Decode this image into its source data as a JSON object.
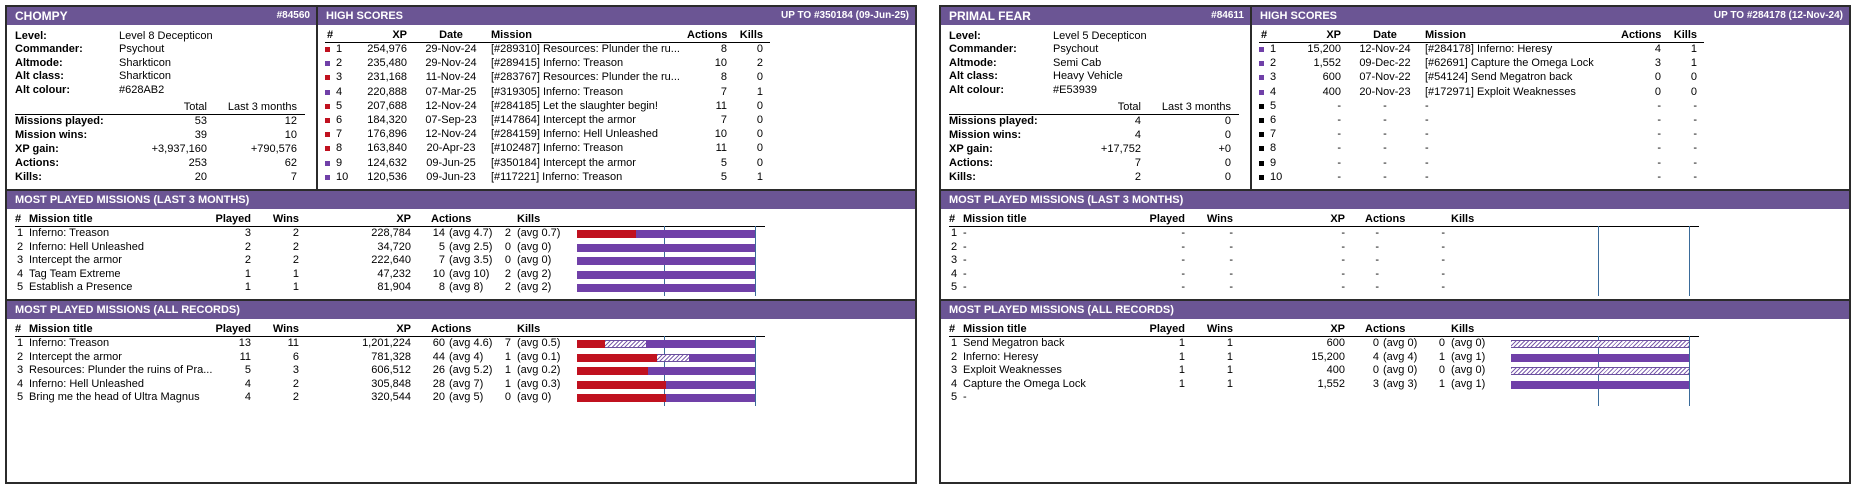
{
  "colors": {
    "header": "#6b5594",
    "red": "#c0111f",
    "purple": "#7040a8",
    "black": "#000000"
  },
  "left": {
    "name": "CHOMPY",
    "id": "#84560",
    "info_labels": [
      "Level:",
      "Commander:",
      "Altmode:",
      "Alt class:",
      "Alt colour:"
    ],
    "info_values": [
      "Level 8 Decepticon",
      "Psychout",
      "Sharkticon",
      "Sharkticon",
      "#628AB2"
    ],
    "stats_head": [
      "Total",
      "Last 3 months"
    ],
    "stats_labels": [
      "Missions played:",
      "Mission wins:",
      "XP gain:",
      "Actions:",
      "Kills:"
    ],
    "stats_total": [
      "53",
      "39",
      "+3,937,160",
      "253",
      "20"
    ],
    "stats_last3": [
      "12",
      "10",
      "+790,576",
      "62",
      "7"
    ],
    "hs_title": "HIGH SCORES",
    "hs_upto": "UP TO #350184 (09-Jun-25)",
    "hs_cols": [
      "#",
      "XP",
      "Date",
      "Mission",
      "Actions",
      "Kills"
    ],
    "hs_rows": [
      {
        "n": "1",
        "xp": "254,976",
        "date": "29-Nov-24",
        "mission": "[#289310] Resources: Plunder the ru...",
        "actions": "8",
        "kills": "0",
        "color": "red"
      },
      {
        "n": "2",
        "xp": "235,480",
        "date": "29-Nov-24",
        "mission": "[#289415] Inferno: Treason",
        "actions": "10",
        "kills": "2",
        "color": "purple"
      },
      {
        "n": "3",
        "xp": "231,168",
        "date": "11-Nov-24",
        "mission": "[#283767] Resources: Plunder the ru...",
        "actions": "8",
        "kills": "0",
        "color": "red"
      },
      {
        "n": "4",
        "xp": "220,888",
        "date": "07-Mar-25",
        "mission": "[#319305] Inferno: Treason",
        "actions": "7",
        "kills": "1",
        "color": "purple"
      },
      {
        "n": "5",
        "xp": "207,688",
        "date": "12-Nov-24",
        "mission": "[#284185] Let the slaughter begin!",
        "actions": "11",
        "kills": "0",
        "color": "red"
      },
      {
        "n": "6",
        "xp": "184,320",
        "date": "07-Sep-23",
        "mission": "[#147864] Intercept the armor",
        "actions": "7",
        "kills": "0",
        "color": "red"
      },
      {
        "n": "7",
        "xp": "176,896",
        "date": "12-Nov-24",
        "mission": "[#284159] Inferno: Hell Unleashed",
        "actions": "10",
        "kills": "0",
        "color": "red"
      },
      {
        "n": "8",
        "xp": "163,840",
        "date": "20-Apr-23",
        "mission": "[#102487] Inferno: Treason",
        "actions": "11",
        "kills": "0",
        "color": "red"
      },
      {
        "n": "9",
        "xp": "124,632",
        "date": "09-Jun-25",
        "mission": "[#350184] Intercept the armor",
        "actions": "5",
        "kills": "0",
        "color": "purple"
      },
      {
        "n": "10",
        "xp": "120,536",
        "date": "09-Jun-23",
        "mission": "[#117221] Inferno: Treason",
        "actions": "5",
        "kills": "1",
        "color": "purple"
      }
    ],
    "mp3_title": "MOST PLAYED MISSIONS (LAST 3 MONTHS)",
    "mp_cols": [
      "#",
      "Mission title",
      "Played",
      "Wins",
      "XP",
      "Actions",
      "Kills"
    ],
    "mp3_rows": [
      {
        "n": "1",
        "title": "Inferno: Treason",
        "played": "3",
        "wins": "2",
        "xp": "228,784",
        "actions": "14",
        "aavg": "(avg 4.7)",
        "kills": "2",
        "kavg": "(avg 0.7)",
        "red": 0.33,
        "hatch": 0
      },
      {
        "n": "2",
        "title": "Inferno: Hell Unleashed",
        "played": "2",
        "wins": "2",
        "xp": "34,720",
        "actions": "5",
        "aavg": "(avg 2.5)",
        "kills": "0",
        "kavg": "(avg 0)",
        "red": 0,
        "hatch": 0
      },
      {
        "n": "3",
        "title": "Intercept the armor",
        "played": "2",
        "wins": "2",
        "xp": "222,640",
        "actions": "7",
        "aavg": "(avg 3.5)",
        "kills": "0",
        "kavg": "(avg 0)",
        "red": 0,
        "hatch": 0
      },
      {
        "n": "4",
        "title": "Tag Team Extreme",
        "played": "1",
        "wins": "1",
        "xp": "47,232",
        "actions": "10",
        "aavg": "(avg 10)",
        "kills": "2",
        "kavg": "(avg 2)",
        "red": 0,
        "hatch": 0
      },
      {
        "n": "5",
        "title": "Establish a Presence",
        "played": "1",
        "wins": "1",
        "xp": "81,904",
        "actions": "8",
        "aavg": "(avg 8)",
        "kills": "2",
        "kavg": "(avg 2)",
        "red": 0,
        "hatch": 0
      }
    ],
    "mpall_title": "MOST PLAYED MISSIONS (ALL RECORDS)",
    "mpall_rows": [
      {
        "n": "1",
        "title": "Inferno: Treason",
        "played": "13",
        "wins": "11",
        "xp": "1,201,224",
        "actions": "60",
        "aavg": "(avg 4.6)",
        "kills": "7",
        "kavg": "(avg 0.5)",
        "red": 0.16,
        "hatch": 0.23
      },
      {
        "n": "2",
        "title": "Intercept the armor",
        "played": "11",
        "wins": "6",
        "xp": "781,328",
        "actions": "44",
        "aavg": "(avg 4)",
        "kills": "1",
        "kavg": "(avg 0.1)",
        "red": 0.45,
        "hatch": 0.18
      },
      {
        "n": "3",
        "title": "Resources: Plunder the ruins of Pra...",
        "played": "5",
        "wins": "3",
        "xp": "606,512",
        "actions": "26",
        "aavg": "(avg 5.2)",
        "kills": "1",
        "kavg": "(avg 0.2)",
        "red": 0.4,
        "hatch": 0
      },
      {
        "n": "4",
        "title": "Inferno: Hell Unleashed",
        "played": "4",
        "wins": "2",
        "xp": "305,848",
        "actions": "28",
        "aavg": "(avg 7)",
        "kills": "1",
        "kavg": "(avg 0.3)",
        "red": 0.5,
        "hatch": 0
      },
      {
        "n": "5",
        "title": "Bring me the head of Ultra Magnus",
        "played": "4",
        "wins": "2",
        "xp": "320,544",
        "actions": "20",
        "aavg": "(avg 5)",
        "kills": "0",
        "kavg": "(avg 0)",
        "red": 0.5,
        "hatch": 0
      }
    ]
  },
  "right": {
    "name": "PRIMAL FEAR",
    "id": "#84611",
    "info_labels": [
      "Level:",
      "Commander:",
      "Altmode:",
      "Alt class:",
      "Alt colour:"
    ],
    "info_values": [
      "Level 5 Decepticon",
      "Psychout",
      "Semi Cab",
      "Heavy Vehicle",
      "#E53939"
    ],
    "stats_head": [
      "Total",
      "Last 3 months"
    ],
    "stats_labels": [
      "Missions played:",
      "Mission wins:",
      "XP gain:",
      "Actions:",
      "Kills:"
    ],
    "stats_total": [
      "4",
      "4",
      "+17,752",
      "7",
      "2"
    ],
    "stats_last3": [
      "0",
      "0",
      "+0",
      "0",
      "0"
    ],
    "hs_title": "HIGH SCORES",
    "hs_upto": "UP TO #284178 (12-Nov-24)",
    "hs_cols": [
      "#",
      "XP",
      "Date",
      "Mission",
      "Actions",
      "Kills"
    ],
    "hs_rows": [
      {
        "n": "1",
        "xp": "15,200",
        "date": "12-Nov-24",
        "mission": "[#284178] Inferno: Heresy",
        "actions": "4",
        "kills": "1",
        "color": "purple"
      },
      {
        "n": "2",
        "xp": "1,552",
        "date": "09-Dec-22",
        "mission": "[#62691] Capture the Omega Lock",
        "actions": "3",
        "kills": "1",
        "color": "purple"
      },
      {
        "n": "3",
        "xp": "600",
        "date": "07-Nov-22",
        "mission": "[#54124] Send Megatron back",
        "actions": "0",
        "kills": "0",
        "color": "purple"
      },
      {
        "n": "4",
        "xp": "400",
        "date": "20-Nov-23",
        "mission": "[#172971] Exploit Weaknesses",
        "actions": "0",
        "kills": "0",
        "color": "purple"
      },
      {
        "n": "5",
        "xp": "-",
        "date": "-",
        "mission": "-",
        "actions": "-",
        "kills": "-",
        "color": "black"
      },
      {
        "n": "6",
        "xp": "-",
        "date": "-",
        "mission": "-",
        "actions": "-",
        "kills": "-",
        "color": "black"
      },
      {
        "n": "7",
        "xp": "-",
        "date": "-",
        "mission": "-",
        "actions": "-",
        "kills": "-",
        "color": "black"
      },
      {
        "n": "8",
        "xp": "-",
        "date": "-",
        "mission": "-",
        "actions": "-",
        "kills": "-",
        "color": "black"
      },
      {
        "n": "9",
        "xp": "-",
        "date": "-",
        "mission": "-",
        "actions": "-",
        "kills": "-",
        "color": "black"
      },
      {
        "n": "10",
        "xp": "-",
        "date": "-",
        "mission": "-",
        "actions": "-",
        "kills": "-",
        "color": "black"
      }
    ],
    "mp3_title": "MOST PLAYED MISSIONS (LAST 3 MONTHS)",
    "mp_cols": [
      "#",
      "Mission title",
      "Played",
      "Wins",
      "XP",
      "Actions",
      "Kills"
    ],
    "mp3_rows": [
      {
        "n": "1",
        "title": "-",
        "played": "-",
        "wins": "-",
        "xp": "-",
        "actions": "-",
        "aavg": "",
        "kills": "-",
        "kavg": "",
        "bar": false
      },
      {
        "n": "2",
        "title": "-",
        "played": "-",
        "wins": "-",
        "xp": "-",
        "actions": "-",
        "aavg": "",
        "kills": "-",
        "kavg": "",
        "bar": false
      },
      {
        "n": "3",
        "title": "-",
        "played": "-",
        "wins": "-",
        "xp": "-",
        "actions": "-",
        "aavg": "",
        "kills": "-",
        "kavg": "",
        "bar": false
      },
      {
        "n": "4",
        "title": "-",
        "played": "-",
        "wins": "-",
        "xp": "-",
        "actions": "-",
        "aavg": "",
        "kills": "-",
        "kavg": "",
        "bar": false
      },
      {
        "n": "5",
        "title": "-",
        "played": "-",
        "wins": "-",
        "xp": "-",
        "actions": "-",
        "aavg": "",
        "kills": "-",
        "kavg": "",
        "bar": false
      }
    ],
    "mpall_title": "MOST PLAYED MISSIONS (ALL RECORDS)",
    "mpall_rows": [
      {
        "n": "1",
        "title": "Send Megatron back",
        "played": "1",
        "wins": "1",
        "xp": "600",
        "actions": "0",
        "aavg": "(avg 0)",
        "kills": "0",
        "kavg": "(avg 0)",
        "red": 0,
        "hatch": 1
      },
      {
        "n": "2",
        "title": "Inferno: Heresy",
        "played": "1",
        "wins": "1",
        "xp": "15,200",
        "actions": "4",
        "aavg": "(avg 4)",
        "kills": "1",
        "kavg": "(avg 1)",
        "red": 0,
        "hatch": 0
      },
      {
        "n": "3",
        "title": "Exploit Weaknesses",
        "played": "1",
        "wins": "1",
        "xp": "400",
        "actions": "0",
        "aavg": "(avg 0)",
        "kills": "0",
        "kavg": "(avg 0)",
        "red": 0,
        "hatch": 1
      },
      {
        "n": "4",
        "title": "Capture the Omega Lock",
        "played": "1",
        "wins": "1",
        "xp": "1,552",
        "actions": "3",
        "aavg": "(avg 3)",
        "kills": "1",
        "kavg": "(avg 1)",
        "red": 0,
        "hatch": 0
      },
      {
        "n": "5",
        "title": "-",
        "played": "",
        "wins": "",
        "xp": "",
        "actions": "",
        "aavg": "",
        "kills": "",
        "kavg": "",
        "bar": false
      }
    ]
  }
}
